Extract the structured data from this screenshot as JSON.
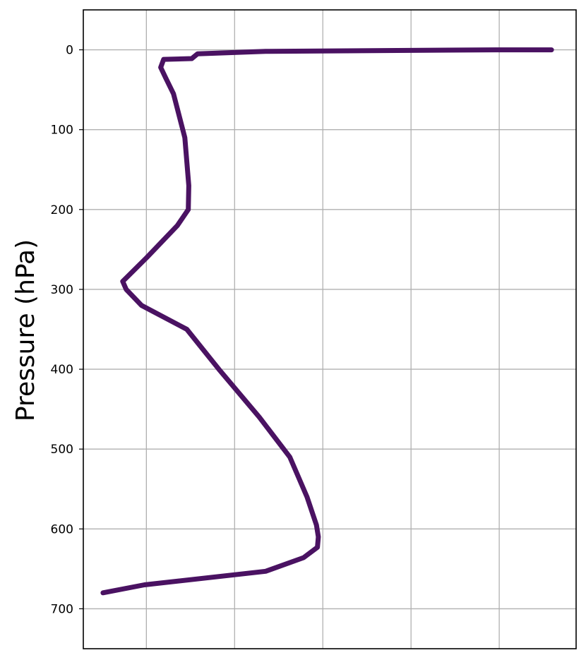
{
  "chart_data": {
    "type": "line",
    "ylabel": "Pressure (hPa)",
    "xlabel": "",
    "title": "",
    "y_inverted": true,
    "ylim": [
      750,
      -50
    ],
    "xlim": [
      0,
      1
    ],
    "yticks": [
      0,
      100,
      200,
      300,
      400,
      500,
      600,
      700
    ],
    "ytick_labels": [
      "0",
      "100",
      "200",
      "300",
      "400",
      "500",
      "600",
      "700"
    ],
    "xticks": [
      0.128,
      0.307,
      0.486,
      0.665,
      0.844
    ],
    "xtick_labels": [],
    "grid": true,
    "series": [
      {
        "color": "#4a1262",
        "x": [
          0.04,
          0.124,
          0.37,
          0.447,
          0.475,
          0.477,
          0.473,
          0.454,
          0.419,
          0.357,
          0.275,
          0.21,
          0.118,
          0.087,
          0.08,
          0.093,
          0.129,
          0.191,
          0.213,
          0.214,
          0.206,
          0.183,
          0.167,
          0.157,
          0.163,
          0.22,
          0.232,
          0.37,
          0.836,
          0.95
        ],
        "y": [
          680,
          670,
          653,
          636,
          623,
          610,
          595,
          560,
          510,
          460,
          400,
          350,
          320,
          300,
          290,
          282,
          260,
          220,
          200,
          170,
          110,
          55,
          35,
          22,
          12,
          11,
          5,
          2,
          0,
          0
        ]
      }
    ]
  }
}
